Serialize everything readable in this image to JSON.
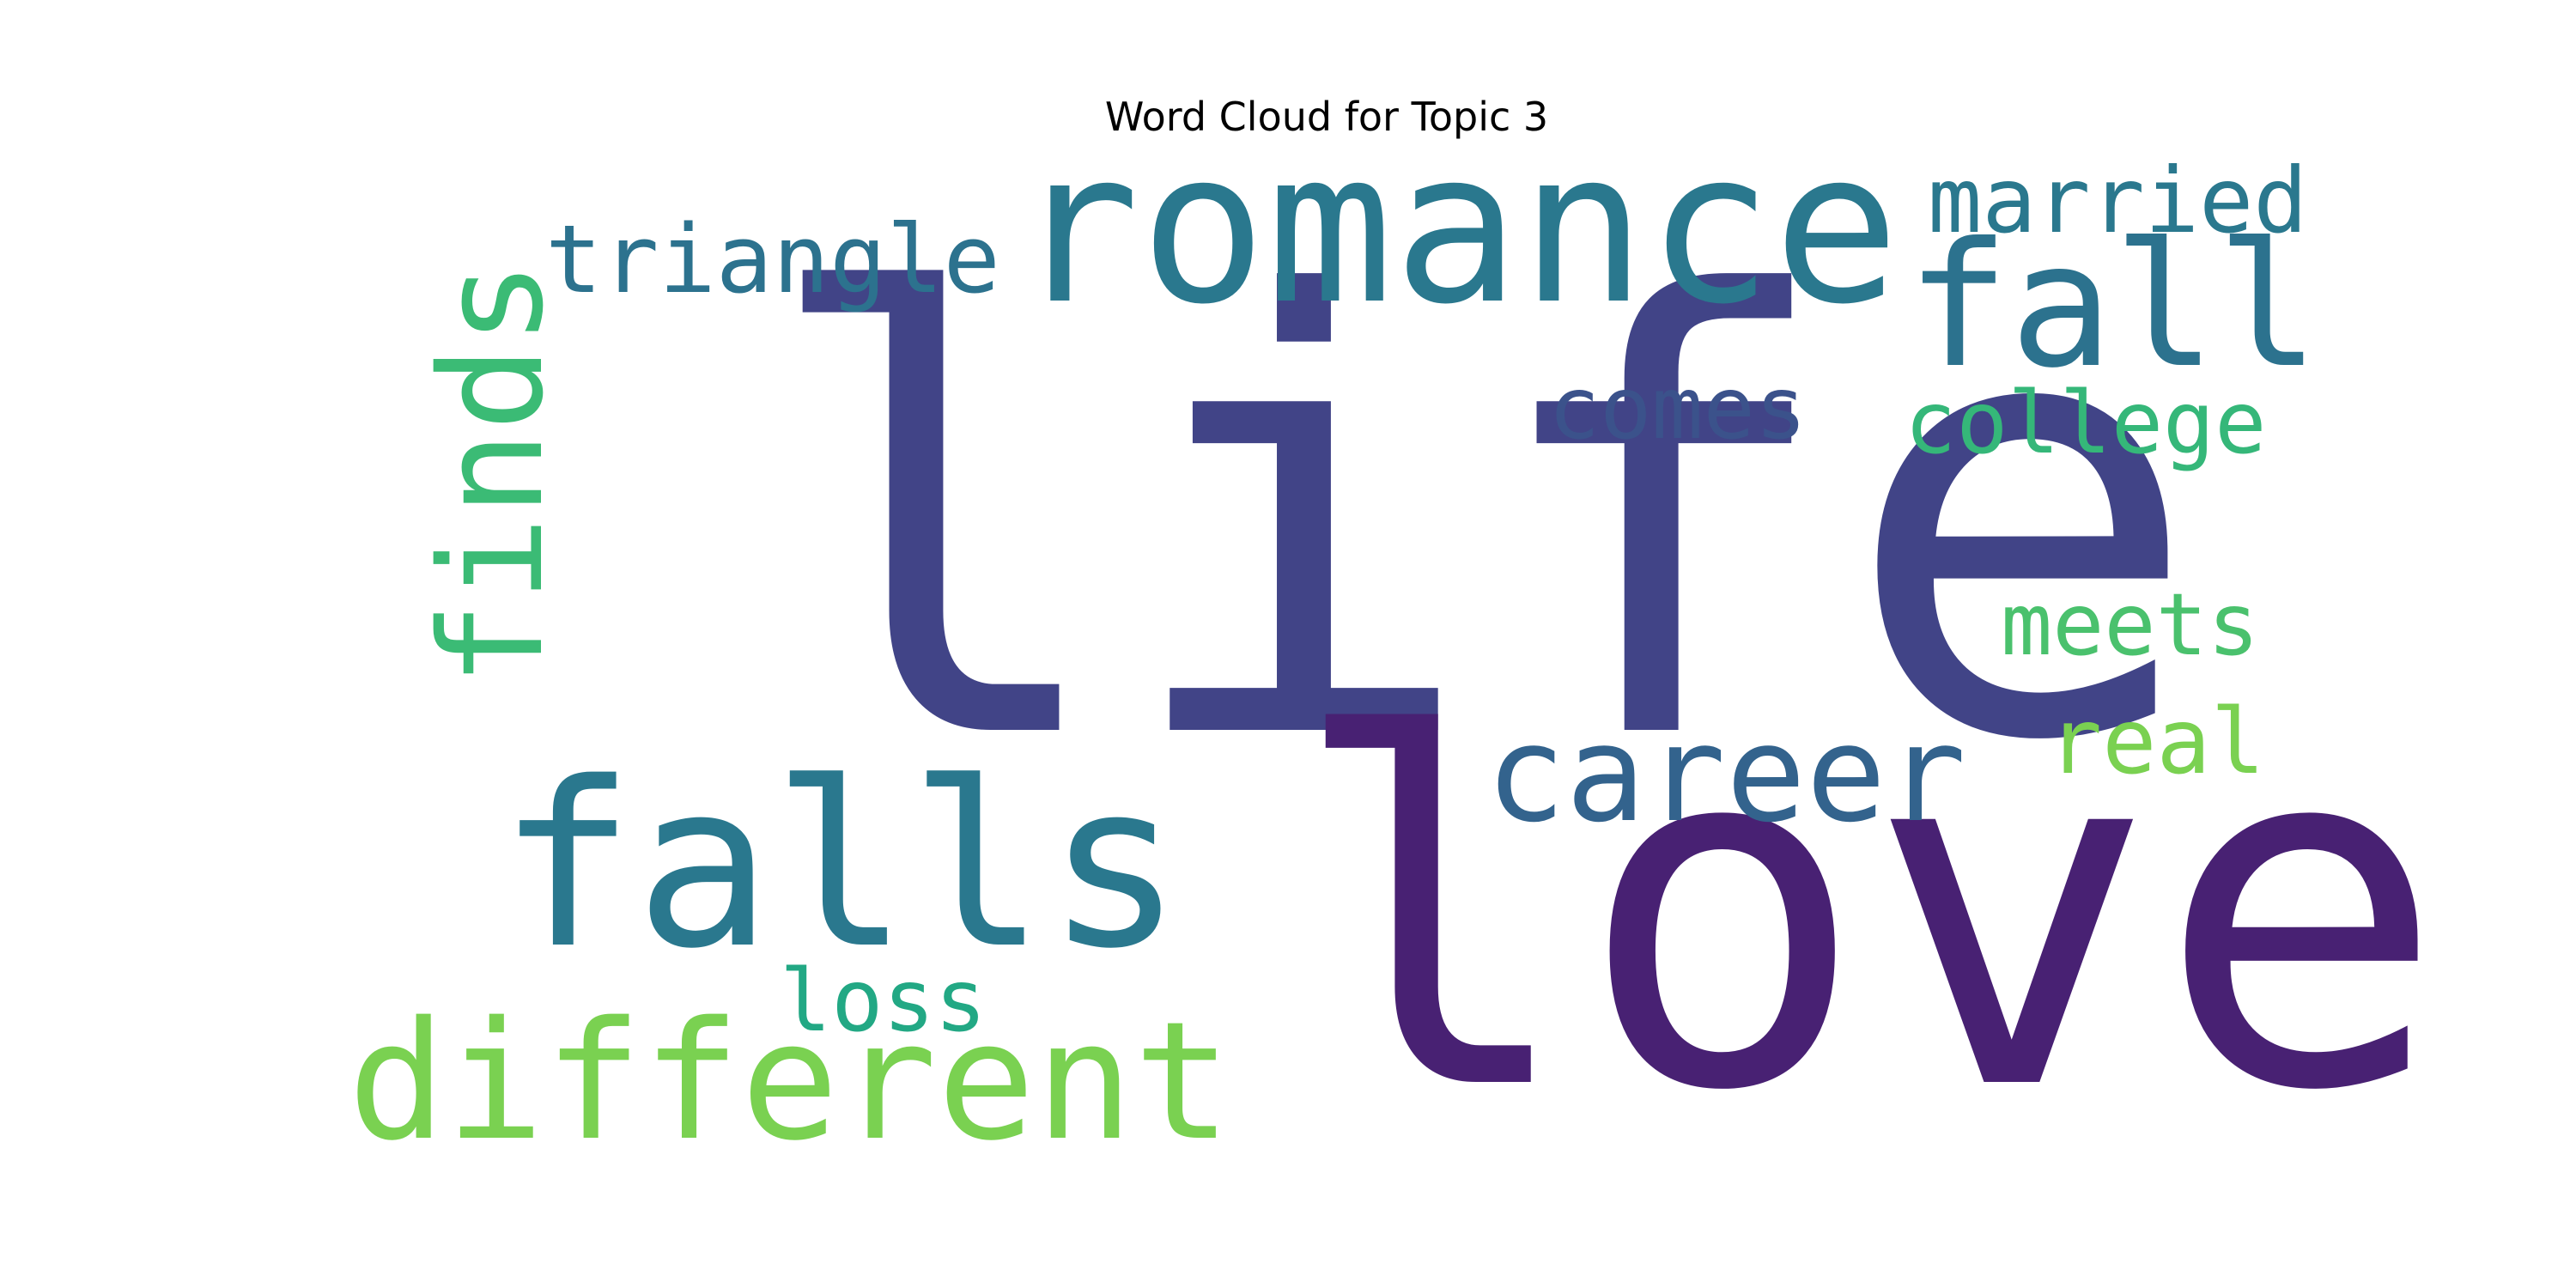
{
  "title": "Word Cloud for Topic 3",
  "words": [
    {
      "text": "life",
      "color": "#414487"
    },
    {
      "text": "love",
      "color": "#482173"
    },
    {
      "text": "romance",
      "color": "#2A788E"
    },
    {
      "text": "falls",
      "color": "#2A788E"
    },
    {
      "text": "fall",
      "color": "#2C728E"
    },
    {
      "text": "different",
      "color": "#7AD151"
    },
    {
      "text": "career",
      "color": "#33638D"
    },
    {
      "text": "finds",
      "color": "#3BBB75"
    },
    {
      "text": "triangle",
      "color": "#2C728E"
    },
    {
      "text": "married",
      "color": "#2A788E"
    },
    {
      "text": "comes",
      "color": "#3B528B"
    },
    {
      "text": "college",
      "color": "#35B779"
    },
    {
      "text": "meets",
      "color": "#4AC16D"
    },
    {
      "text": "real",
      "color": "#7AD151"
    },
    {
      "text": "loss",
      "color": "#22A884"
    }
  ]
}
